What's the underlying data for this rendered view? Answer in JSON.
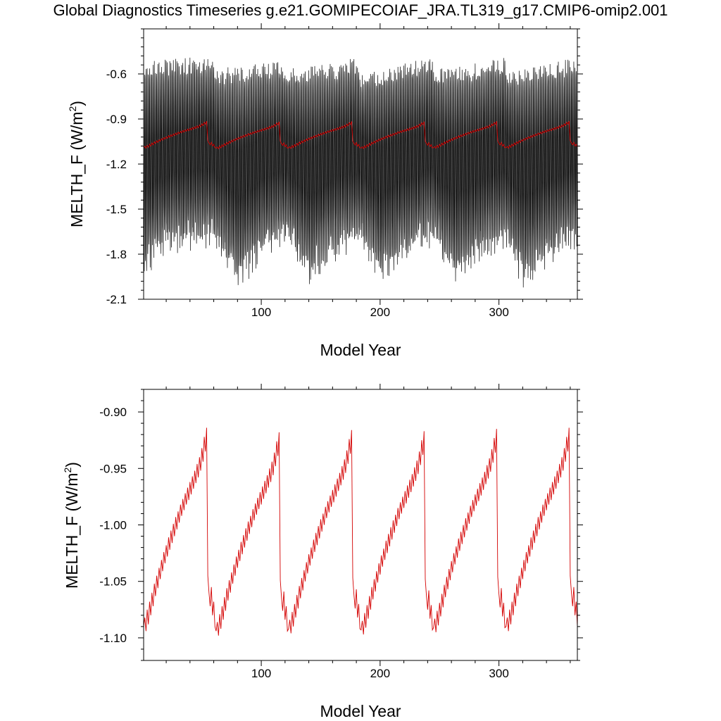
{
  "page": {
    "title": "Global Diagnostics Timeseries g.e21.GOMIPECOIAF_JRA.TL319_g17.CMIP6-omip2.001"
  },
  "chart_data": [
    {
      "type": "line",
      "xlabel": "Model Year",
      "ylabel": "MELTH_F (W/m",
      "ylabel_sup": "2",
      "ylabel_close": ")",
      "xlim": [
        1,
        366
      ],
      "ylim": [
        -2.1,
        -0.3
      ],
      "xticks": [
        100,
        200,
        300
      ],
      "xtick_labels": [
        "100",
        "200",
        "300"
      ],
      "yticks": [
        -0.6,
        -0.9,
        -1.2,
        -1.5,
        -1.8,
        -2.1
      ],
      "ytick_labels": [
        "-0.6",
        "-0.9",
        "-1.2",
        "-1.5",
        "-1.8",
        "-2.1"
      ],
      "grid": false,
      "series": [
        {
          "color": "#000000",
          "description": "monthly values, seasonal cycle; maxima about -0.55 to -0.70, minima about -1.55 to -2.0",
          "upper_envelope": [
            [
              1,
              -0.58
            ],
            [
              30,
              -0.55
            ],
            [
              60,
              -0.54
            ],
            [
              61,
              -0.62
            ],
            [
              90,
              -0.6
            ],
            [
              120,
              -0.57
            ],
            [
              122,
              -0.62
            ],
            [
              150,
              -0.6
            ],
            [
              182,
              -0.55
            ],
            [
              184,
              -0.65
            ],
            [
              210,
              -0.6
            ],
            [
              244,
              -0.55
            ],
            [
              246,
              -0.62
            ],
            [
              270,
              -0.6
            ],
            [
              305,
              -0.55
            ],
            [
              307,
              -0.63
            ],
            [
              335,
              -0.6
            ],
            [
              366,
              -0.55
            ]
          ],
          "lower_envelope": [
            [
              1,
              -1.85
            ],
            [
              20,
              -1.7
            ],
            [
              60,
              -1.65
            ],
            [
              75,
              -1.85
            ],
            [
              80,
              -1.95
            ],
            [
              100,
              -1.75
            ],
            [
              122,
              -1.65
            ],
            [
              140,
              -1.9
            ],
            [
              160,
              -1.75
            ],
            [
              184,
              -1.65
            ],
            [
              200,
              -1.9
            ],
            [
              220,
              -1.75
            ],
            [
              245,
              -1.65
            ],
            [
              262,
              -1.9
            ],
            [
              285,
              -1.75
            ],
            [
              305,
              -1.65
            ],
            [
              320,
              -1.92
            ],
            [
              345,
              -1.75
            ],
            [
              366,
              -1.65
            ]
          ]
        },
        {
          "color": "#d40000",
          "description": "annual mean, same as lower panel",
          "same_as_panel": 1
        }
      ]
    },
    {
      "type": "line",
      "xlabel": "Model Year",
      "ylabel": "MELTH_F (W/m",
      "ylabel_sup": "2",
      "ylabel_close": ")",
      "xlim": [
        1,
        366
      ],
      "ylim": [
        -1.12,
        -0.88
      ],
      "xticks": [
        100,
        200,
        300
      ],
      "xtick_labels": [
        "100",
        "200",
        "300"
      ],
      "yticks": [
        -0.9,
        -0.95,
        -1.0,
        -1.05,
        -1.1
      ],
      "ytick_labels": [
        "-0.90",
        "-0.95",
        "-1.00",
        "-1.05",
        "-1.10"
      ],
      "grid": false,
      "series": [
        {
          "color": "#d40000",
          "x_start": 1,
          "cycle_length": 61,
          "cycle_template": [
            -1.09,
            -1.082,
            -1.094,
            -1.075,
            -1.088,
            -1.068,
            -1.08,
            -1.06,
            -1.072,
            -1.052,
            -1.063,
            -1.045,
            -1.056,
            -1.038,
            -1.048,
            -1.031,
            -1.041,
            -1.024,
            -1.034,
            -1.018,
            -1.028,
            -1.011,
            -1.022,
            -1.005,
            -1.016,
            -0.999,
            -1.01,
            -0.993,
            -1.004,
            -0.988,
            -0.998,
            -0.982,
            -0.992,
            -0.977,
            -0.987,
            -0.972,
            -0.982,
            -0.967,
            -0.978,
            -0.962,
            -0.973,
            -0.957,
            -0.968,
            -0.952,
            -0.963,
            -0.946,
            -0.958,
            -0.94,
            -0.952,
            -0.932,
            -0.944,
            -0.922,
            -0.935,
            -0.914,
            -1.045,
            -1.06,
            -1.072,
            -1.055,
            -1.08,
            -1.068,
            -1.09
          ],
          "cycle_offsets": [
            0.0,
            -0.004,
            -0.002,
            -0.003,
            -0.001,
            0.0
          ]
        }
      ]
    }
  ]
}
